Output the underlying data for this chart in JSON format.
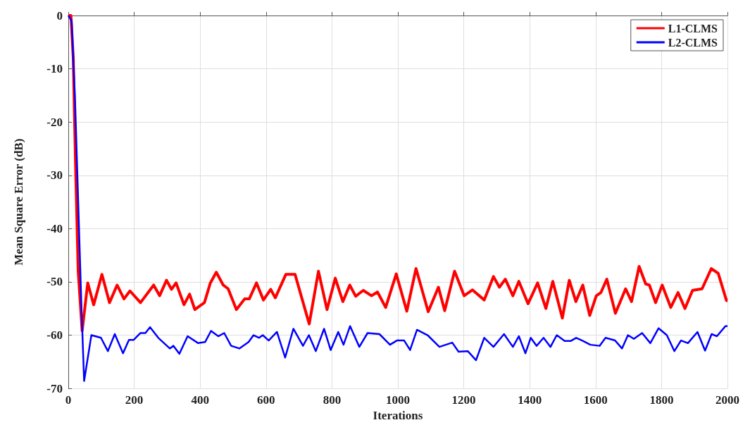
{
  "chart_data": {
    "type": "line",
    "xlabel": "Iterations",
    "ylabel": "Mean Square Error (dB)",
    "xlim": [
      0,
      2000
    ],
    "xticks": [
      0,
      200,
      400,
      600,
      800,
      1000,
      1200,
      1400,
      1600,
      1800,
      2000
    ],
    "ylim": [
      -70,
      0
    ],
    "yticks": [
      -70,
      -60,
      -50,
      -40,
      -30,
      -20,
      -10,
      0
    ],
    "grid": true,
    "legend": "top right",
    "series": [
      {
        "name": "L1-CLMS",
        "color": "#ff0000",
        "x": [
          0,
          8,
          15,
          22,
          30,
          42,
          59,
          77,
          102,
          125,
          148,
          169,
          187,
          219,
          259,
          277,
          298,
          313,
          327,
          351,
          368,
          384,
          413,
          431,
          449,
          470,
          485,
          510,
          535,
          549,
          571,
          592,
          614,
          628,
          660,
          688,
          731,
          759,
          785,
          810,
          833,
          854,
          872,
          895,
          920,
          938,
          963,
          995,
          1027,
          1055,
          1092,
          1123,
          1142,
          1172,
          1201,
          1226,
          1262,
          1290,
          1308,
          1326,
          1349,
          1367,
          1395,
          1424,
          1449,
          1470,
          1499,
          1520,
          1540,
          1561,
          1582,
          1602,
          1616,
          1634,
          1660,
          1691,
          1709,
          1732,
          1752,
          1763,
          1782,
          1802,
          1828,
          1850,
          1871,
          1894,
          1923,
          1951,
          1972,
          1997,
          2000
        ],
        "values": [
          0,
          0,
          -8,
          -28,
          -48,
          -59.2,
          -50.2,
          -54.3,
          -48.6,
          -53.9,
          -50.6,
          -53.2,
          -51.7,
          -53.9,
          -50.6,
          -52.6,
          -49.7,
          -51.4,
          -50.2,
          -54.3,
          -52.3,
          -55.2,
          -53.9,
          -50.2,
          -48.2,
          -50.6,
          -51.3,
          -55.2,
          -53.2,
          -53.2,
          -50.2,
          -53.4,
          -51.4,
          -53,
          -48.6,
          -48.6,
          -57.9,
          -48,
          -55.2,
          -49.3,
          -53.7,
          -50.6,
          -52.7,
          -51.6,
          -52.6,
          -51.9,
          -54.8,
          -48.5,
          -55.5,
          -47.5,
          -55.6,
          -51,
          -55.4,
          -48,
          -52.6,
          -51.5,
          -53.4,
          -49,
          -51,
          -49.5,
          -52.6,
          -49.9,
          -54.1,
          -50.2,
          -55,
          -49.9,
          -56.8,
          -49.7,
          -53.7,
          -50.6,
          -56.3,
          -52.6,
          -52,
          -49.5,
          -55.9,
          -51.3,
          -53.7,
          -47.1,
          -50.4,
          -50.6,
          -53.9,
          -50.6,
          -54.8,
          -52,
          -55,
          -51.6,
          -51.3,
          -47.5,
          -48.4,
          -53.5,
          -53.5
        ]
      },
      {
        "name": "L2-CLMS",
        "color": "#0000ff",
        "x": [
          0,
          10,
          20,
          30,
          40,
          48,
          70,
          99,
          120,
          141,
          166,
          184,
          198,
          219,
          234,
          248,
          273,
          308,
          319,
          337,
          362,
          394,
          415,
          433,
          455,
          473,
          494,
          519,
          547,
          562,
          579,
          590,
          608,
          633,
          658,
          683,
          712,
          730,
          751,
          776,
          796,
          819,
          835,
          855,
          883,
          908,
          944,
          976,
          997,
          1019,
          1037,
          1058,
          1090,
          1126,
          1165,
          1184,
          1212,
          1237,
          1262,
          1290,
          1322,
          1349,
          1367,
          1387,
          1403,
          1421,
          1442,
          1463,
          1482,
          1506,
          1524,
          1541,
          1559,
          1584,
          1612,
          1630,
          1659,
          1680,
          1698,
          1716,
          1741,
          1766,
          1791,
          1816,
          1839,
          1859,
          1880,
          1909,
          1932,
          1952,
          1968,
          1994,
          2000
        ],
        "values": [
          0,
          -1,
          -15,
          -35,
          -55,
          -68.6,
          -60,
          -60.5,
          -63,
          -59.8,
          -63.4,
          -60.9,
          -60.9,
          -59.6,
          -59.6,
          -58.5,
          -60.5,
          -62.5,
          -62,
          -63.5,
          -60.2,
          -61.5,
          -61.3,
          -59.2,
          -60.2,
          -59.6,
          -62,
          -62.5,
          -61.3,
          -60,
          -60.5,
          -60,
          -61,
          -59.4,
          -64.2,
          -58.8,
          -62,
          -60,
          -63,
          -58.8,
          -62.8,
          -59.4,
          -61.8,
          -58.3,
          -62.2,
          -59.6,
          -59.8,
          -61.8,
          -61,
          -61,
          -62.8,
          -59,
          -60,
          -62.2,
          -61.4,
          -63.1,
          -63,
          -64.7,
          -60.5,
          -62.2,
          -59.8,
          -62.2,
          -60.2,
          -63.4,
          -60.5,
          -62,
          -60.5,
          -62.2,
          -60,
          -61.1,
          -61.1,
          -60.5,
          -61,
          -61.8,
          -62,
          -60.5,
          -61,
          -62.5,
          -60,
          -60.7,
          -59.6,
          -61.5,
          -58.7,
          -60,
          -63,
          -61,
          -61.5,
          -59.4,
          -62.9,
          -59.8,
          -60.2,
          -58.3,
          -58.3
        ]
      }
    ]
  }
}
